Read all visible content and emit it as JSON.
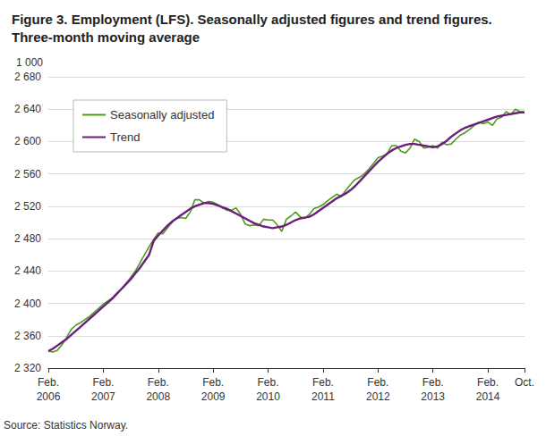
{
  "chart_data": {
    "type": "line",
    "title": "Figure 3. Employment (LFS). Seasonally adjusted figures and trend figures.\nThree-month moving average",
    "ylabel": "1 000",
    "source": "Source: Statistics Norway.",
    "categories": [
      "Feb.\n2006",
      null,
      null,
      null,
      null,
      null,
      null,
      null,
      null,
      null,
      null,
      null,
      "Feb.\n2007",
      null,
      null,
      null,
      null,
      null,
      null,
      null,
      null,
      null,
      null,
      null,
      "Feb.\n2008",
      null,
      null,
      null,
      null,
      null,
      null,
      null,
      null,
      null,
      null,
      null,
      "Feb.\n2009",
      null,
      null,
      null,
      null,
      null,
      null,
      null,
      null,
      null,
      null,
      null,
      "Feb.\n2010",
      null,
      null,
      null,
      null,
      null,
      null,
      null,
      null,
      null,
      null,
      null,
      "Feb.\n2011",
      null,
      null,
      null,
      null,
      null,
      null,
      null,
      null,
      null,
      null,
      null,
      "Feb.\n2012",
      null,
      null,
      null,
      null,
      null,
      null,
      null,
      null,
      null,
      null,
      null,
      "Feb.\n2013",
      null,
      null,
      null,
      null,
      null,
      null,
      null,
      null,
      null,
      null,
      null,
      "Feb.\n2014",
      null,
      null,
      null,
      null,
      null,
      null,
      null,
      "Oct."
    ],
    "series": [
      {
        "name": "Seasonally adjusted",
        "color": "#4f9a1c",
        "values": [
          2341,
          2340,
          2342,
          2349,
          2358,
          2368,
          2373,
          2376,
          2380,
          2384,
          2389,
          2394,
          2399,
          2403,
          2407,
          2413,
          2418,
          2425,
          2432,
          2440,
          2450,
          2460,
          2470,
          2479,
          2487,
          2486,
          2493,
          2500,
          2505,
          2506,
          2505,
          2513,
          2528,
          2528,
          2524,
          2526,
          2525,
          2522,
          2518,
          2515,
          2515,
          2518,
          2510,
          2498,
          2496,
          2497,
          2496,
          2504,
          2503,
          2503,
          2497,
          2489,
          2504,
          2508,
          2513,
          2507,
          2505,
          2510,
          2517,
          2519,
          2522,
          2527,
          2531,
          2535,
          2532,
          2540,
          2547,
          2553,
          2556,
          2560,
          2566,
          2573,
          2580,
          2582,
          2585,
          2595,
          2595,
          2588,
          2586,
          2592,
          2603,
          2600,
          2592,
          2593,
          2595,
          2592,
          2599,
          2596,
          2597,
          2603,
          2608,
          2611,
          2615,
          2620,
          2624,
          2622,
          2624,
          2620,
          2628,
          2630,
          2637,
          2633,
          2640,
          2637,
          2637
        ]
      },
      {
        "name": "Trend",
        "color": "#6b1f7c",
        "values": [
          2341,
          2344,
          2348,
          2352,
          2356,
          2361,
          2366,
          2371,
          2376,
          2381,
          2386,
          2391,
          2396,
          2401,
          2406,
          2412,
          2418,
          2424,
          2430,
          2437,
          2444,
          2452,
          2460,
          2477,
          2484,
          2490,
          2496,
          2501,
          2505,
          2509,
          2513,
          2517,
          2520,
          2522,
          2524,
          2524,
          2523,
          2521,
          2519,
          2517,
          2514,
          2511,
          2508,
          2505,
          2502,
          2499,
          2497,
          2495,
          2494,
          2493,
          2494,
          2495,
          2497,
          2500,
          2503,
          2505,
          2506,
          2507,
          2510,
          2514,
          2518,
          2522,
          2526,
          2530,
          2533,
          2536,
          2540,
          2545,
          2551,
          2557,
          2563,
          2569,
          2575,
          2580,
          2585,
          2589,
          2592,
          2594,
          2596,
          2597,
          2597,
          2596,
          2595,
          2594,
          2593,
          2594,
          2597,
          2601,
          2606,
          2610,
          2614,
          2617,
          2619,
          2621,
          2623,
          2625,
          2627,
          2629,
          2631,
          2632,
          2633,
          2634,
          2635,
          2636,
          2636
        ]
      }
    ],
    "ylim": [
      2320,
      2680
    ],
    "yticks": [
      {
        "value": 2320,
        "label": "2 320"
      },
      {
        "value": 2360,
        "label": "2 360"
      },
      {
        "value": 2400,
        "label": "2 400"
      },
      {
        "value": 2440,
        "label": "2 440"
      },
      {
        "value": 2480,
        "label": "2 480"
      },
      {
        "value": 2520,
        "label": "2 520"
      },
      {
        "value": 2560,
        "label": "2 560"
      },
      {
        "value": 2600,
        "label": "2 600"
      },
      {
        "value": 2640,
        "label": "2 640"
      },
      {
        "value": 2680,
        "label": "2 680"
      }
    ],
    "grid": true,
    "legend": "upper left"
  }
}
